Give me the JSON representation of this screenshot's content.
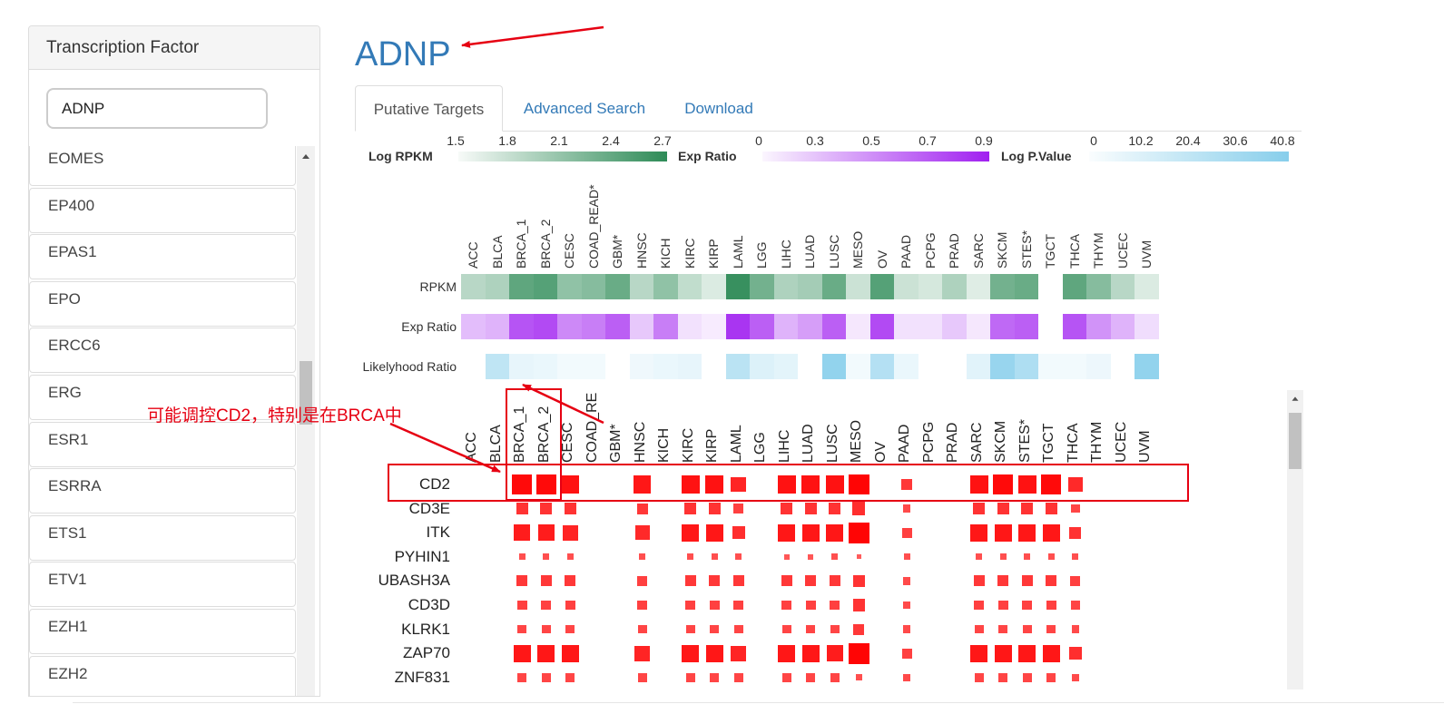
{
  "sidebar": {
    "header": "Transcription Factor",
    "search_value": "ADNP",
    "items": [
      "EOMES",
      "EP400",
      "EPAS1",
      "EPO",
      "ERCC6",
      "ERG",
      "ESR1",
      "ESRRA",
      "ETS1",
      "ETV1",
      "EZH1",
      "EZH2"
    ]
  },
  "title": "ADNP",
  "tabs": [
    {
      "label": "Putative Targets",
      "active": true
    },
    {
      "label": "Advanced Search",
      "active": false
    },
    {
      "label": "Download",
      "active": false
    }
  ],
  "legends": [
    {
      "label": "Log RPKM",
      "ticks": [
        "1.5",
        "1.8",
        "2.1",
        "2.4",
        "2.7"
      ],
      "color": "#2e8b57"
    },
    {
      "label": "Exp Ratio",
      "ticks": [
        "0",
        "0.3",
        "0.5",
        "0.7",
        "0.9"
      ],
      "color": "#a020f0"
    },
    {
      "label": "Log P.Value",
      "ticks": [
        "0",
        "10.2",
        "20.4",
        "30.6",
        "40.8"
      ],
      "color": "#87ceeb"
    }
  ],
  "heatmap": {
    "columns": [
      "ACC",
      "BLCA",
      "BRCA_1",
      "BRCA_2",
      "CESC",
      "COAD_READ*",
      "GBM*",
      "HNSC",
      "KICH",
      "KIRC",
      "KIRP",
      "LAML",
      "LGG",
      "LIHC",
      "LUAD",
      "LUSC",
      "MESO",
      "OV",
      "PAAD",
      "PCPG",
      "PRAD",
      "SARC",
      "SKCM",
      "STES*",
      "TGCT",
      "THCA",
      "THYM",
      "UCEC",
      "UVM"
    ],
    "rows": [
      {
        "label": "RPKM",
        "color": "#2e8b57",
        "values": [
          0.3,
          0.35,
          0.75,
          0.8,
          0.5,
          0.55,
          0.7,
          0.3,
          0.5,
          0.25,
          0.12,
          0.95,
          0.65,
          0.35,
          0.4,
          0.7,
          0.2,
          0.8,
          0.2,
          0.15,
          0.35,
          0.1,
          0.65,
          0.7,
          0,
          0.75,
          0.55,
          0.3,
          0.12
        ]
      },
      {
        "label": "Exp Ratio",
        "color": "#a020f0",
        "values": [
          0.25,
          0.3,
          0.75,
          0.8,
          0.5,
          0.55,
          0.7,
          0.2,
          0.55,
          0.08,
          0.03,
          0.9,
          0.7,
          0.3,
          0.4,
          0.7,
          0.05,
          0.8,
          0.08,
          0.08,
          0.2,
          0.05,
          0.65,
          0.7,
          0,
          0.75,
          0.45,
          0.3,
          0.1
        ]
      },
      {
        "label": "Likelyhood Ratio",
        "color": "#87ceeb",
        "values": [
          0,
          0.5,
          0.15,
          0.12,
          0.05,
          0.05,
          0,
          0.08,
          0.12,
          0.15,
          0,
          0.55,
          0.25,
          0.18,
          0,
          0.9,
          0.05,
          0.6,
          0.12,
          0,
          0,
          0.2,
          0.85,
          0.65,
          0.05,
          0.05,
          0.1,
          0,
          0.9
        ]
      }
    ]
  },
  "dot_plot": {
    "columns": [
      "ACC",
      "BLCA",
      "BRCA_1",
      "BRCA_2",
      "CESC",
      "COAD_RE",
      "GBM*",
      "HNSC",
      "KICH",
      "KIRC",
      "KIRP",
      "LAML",
      "LGG",
      "LIHC",
      "LUAD",
      "LUSC",
      "MESO",
      "OV",
      "PAAD",
      "PCPG",
      "PRAD",
      "SARC",
      "SKCM",
      "STES*",
      "TGCT",
      "THCA",
      "THYM",
      "UCEC",
      "UVM"
    ],
    "genes": [
      {
        "label": "CD2",
        "sizes": [
          0,
          0,
          0.9,
          0.9,
          0.85,
          0,
          0,
          0.8,
          0,
          0.85,
          0.85,
          0.7,
          0,
          0.85,
          0.85,
          0.85,
          0.95,
          0,
          0.5,
          0,
          0,
          0.85,
          0.9,
          0.85,
          0.9,
          0.65,
          0,
          0,
          0
        ]
      },
      {
        "label": "CD3E",
        "sizes": [
          0,
          0,
          0.55,
          0.55,
          0.55,
          0,
          0,
          0.5,
          0,
          0.55,
          0.55,
          0.45,
          0,
          0.55,
          0.55,
          0.55,
          0.6,
          0,
          0.35,
          0,
          0,
          0.55,
          0.55,
          0.55,
          0.55,
          0.4,
          0,
          0,
          0
        ]
      },
      {
        "label": "ITK",
        "sizes": [
          0,
          0,
          0.75,
          0.75,
          0.7,
          0,
          0,
          0.65,
          0,
          0.8,
          0.8,
          0.6,
          0,
          0.8,
          0.8,
          0.8,
          0.95,
          0,
          0.45,
          0,
          0,
          0.8,
          0.8,
          0.8,
          0.8,
          0.55,
          0,
          0,
          0
        ]
      },
      {
        "label": "PYHIN1",
        "sizes": [
          0,
          0,
          0.3,
          0.3,
          0.3,
          0,
          0,
          0.3,
          0,
          0.3,
          0.3,
          0.3,
          0,
          0.25,
          0.25,
          0.3,
          0.2,
          0,
          0.3,
          0,
          0,
          0.3,
          0.3,
          0.3,
          0.3,
          0.3,
          0,
          0,
          0
        ]
      },
      {
        "label": "UBASH3A",
        "sizes": [
          0,
          0,
          0.5,
          0.5,
          0.5,
          0,
          0,
          0.45,
          0,
          0.5,
          0.5,
          0.5,
          0,
          0.5,
          0.5,
          0.5,
          0.55,
          0,
          0.35,
          0,
          0,
          0.5,
          0.5,
          0.5,
          0.5,
          0.45,
          0,
          0,
          0
        ]
      },
      {
        "label": "CD3D",
        "sizes": [
          0,
          0,
          0.45,
          0.45,
          0.45,
          0,
          0,
          0.45,
          0,
          0.45,
          0.45,
          0.45,
          0,
          0.45,
          0.45,
          0.45,
          0.55,
          0,
          0.35,
          0,
          0,
          0.45,
          0.45,
          0.45,
          0.45,
          0.4,
          0,
          0,
          0
        ]
      },
      {
        "label": "KLRK1",
        "sizes": [
          0,
          0,
          0.4,
          0.4,
          0.4,
          0,
          0,
          0.4,
          0,
          0.4,
          0.4,
          0.4,
          0,
          0.4,
          0.4,
          0.4,
          0.5,
          0,
          0.35,
          0,
          0,
          0.4,
          0.4,
          0.4,
          0.4,
          0.35,
          0,
          0,
          0
        ]
      },
      {
        "label": "ZAP70",
        "sizes": [
          0,
          0,
          0.8,
          0.8,
          0.8,
          0,
          0,
          0.7,
          0,
          0.8,
          0.8,
          0.7,
          0,
          0.8,
          0.8,
          0.75,
          0.95,
          0,
          0.45,
          0,
          0,
          0.8,
          0.8,
          0.8,
          0.8,
          0.6,
          0,
          0,
          0
        ]
      },
      {
        "label": "ZNF831",
        "sizes": [
          0,
          0,
          0.4,
          0.4,
          0.4,
          0,
          0,
          0.4,
          0,
          0.4,
          0.4,
          0.4,
          0,
          0.4,
          0.4,
          0.4,
          0.3,
          0,
          0.35,
          0,
          0,
          0.4,
          0.4,
          0.4,
          0.4,
          0.35,
          0,
          0,
          0
        ]
      }
    ]
  },
  "annotation": {
    "text": "可能调控CD2，特别是在BRCA中",
    "color": "#e60012"
  }
}
